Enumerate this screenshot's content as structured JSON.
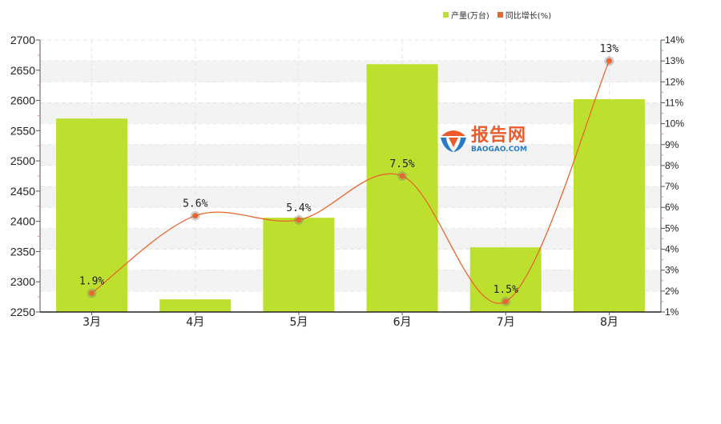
{
  "legend": {
    "bar_label": "产量(万台)",
    "line_label": "同比增长(%)",
    "bar_color": "#bde02e",
    "line_color": "#e8672e"
  },
  "watermark": {
    "cn": "报告网",
    "en": "BAOGAO.COM"
  },
  "chart_data": {
    "type": "bar",
    "title": "",
    "xlabel": "",
    "ylabel": "",
    "categories": [
      "3月",
      "4月",
      "5月",
      "6月",
      "7月",
      "8月"
    ],
    "series": [
      {
        "name": "产量(万台)",
        "type": "bar",
        "axis": "left",
        "color": "#bde02e",
        "values": [
          2570,
          2271,
          2406,
          2660,
          2357,
          2602
        ]
      },
      {
        "name": "同比增长(%)",
        "type": "line",
        "axis": "right",
        "color": "#e8672e",
        "values": [
          1.9,
          5.6,
          5.4,
          7.5,
          1.5,
          13
        ],
        "labels": [
          "1.9%",
          "5.6%",
          "5.4%",
          "7.5%",
          "1.5%",
          "13%"
        ]
      }
    ],
    "ylim": [
      2250,
      2700
    ],
    "y_ticks": [
      2250,
      2300,
      2350,
      2400,
      2450,
      2500,
      2550,
      2600,
      2650,
      2700
    ],
    "y2lim": [
      1,
      14
    ],
    "y2_ticks": [
      "1%",
      "2%",
      "3%",
      "4%",
      "5%",
      "6%",
      "7%",
      "8%",
      "9%",
      "10%",
      "11%",
      "12%",
      "13%",
      "14%"
    ],
    "grid": true,
    "legend_position": "top-right"
  }
}
